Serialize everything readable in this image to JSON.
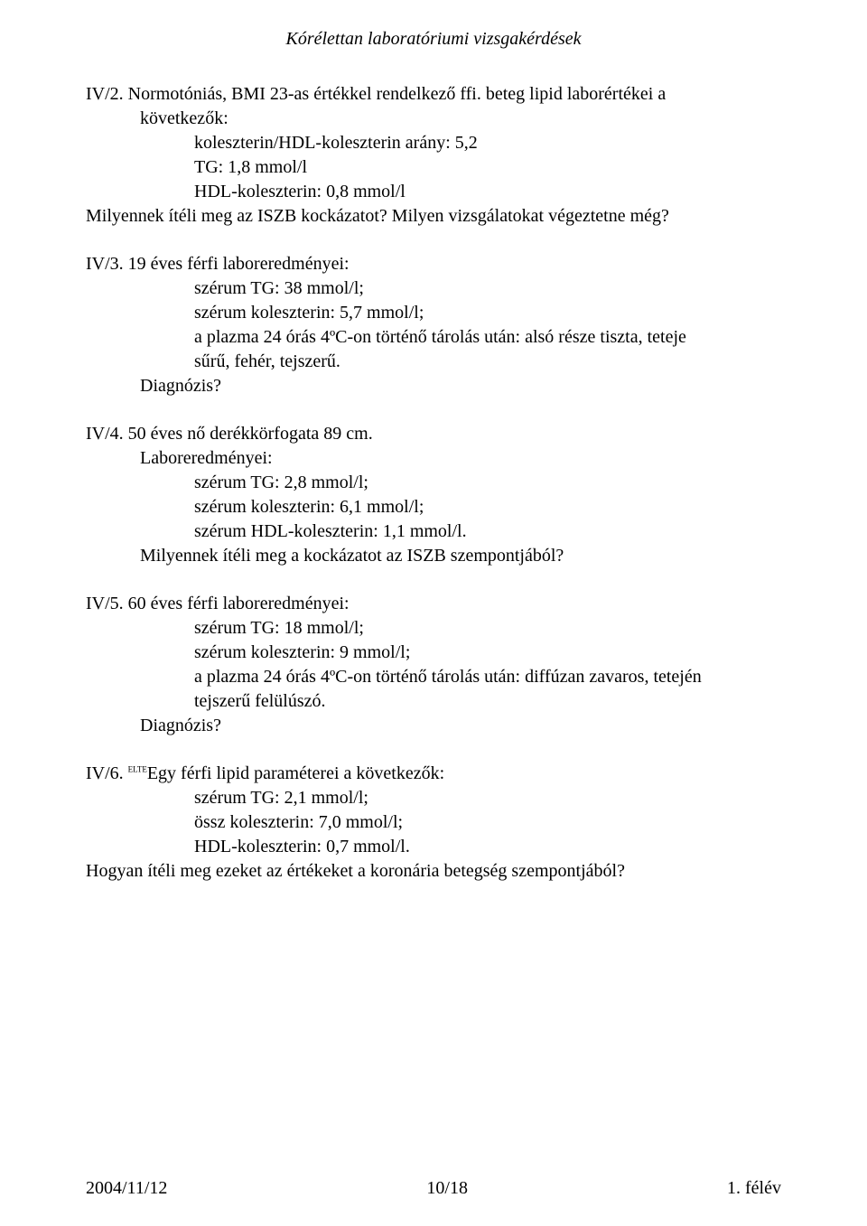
{
  "header": {
    "title": "Kórélettan laboratóriumi vizsgakérdések"
  },
  "questions": [
    {
      "num": "IV/2.",
      "first": "Normotóniás, BMI 23-as értékkel rendelkező ffi. beteg lipid laborértékei a",
      "lines1": [
        "következők:"
      ],
      "lines2": [
        "koleszterin/HDL-koleszterin arány: 5,2",
        "TG: 1,8 mmol/l",
        "HDL-koleszterin: 0,8 mmol/l"
      ],
      "tail0": [
        "Milyennek ítéli meg az ISZB kockázatot? Milyen vizsgálatokat végeztetne még?"
      ]
    },
    {
      "num": "IV/3.",
      "first": "19 éves férfi laboreredményei:",
      "lines2": [
        "szérum TG: 38 mmol/l;",
        "szérum koleszterin: 5,7 mmol/l;",
        "a plazma 24 órás 4ºC-on történő tárolás után: alsó része tiszta, teteje",
        "sűrű, fehér, tejszerű."
      ],
      "lines1_after": [
        "Diagnózis?"
      ]
    },
    {
      "num": "IV/4.",
      "first": "50 éves nő derékkörfogata 89 cm.",
      "lines1": [
        "Laboreredményei:"
      ],
      "lines2": [
        "szérum TG: 2,8 mmol/l;",
        "szérum koleszterin: 6,1 mmol/l;",
        "szérum HDL-koleszterin: 1,1 mmol/l."
      ],
      "lines1_after": [
        "Milyennek ítéli meg a kockázatot az ISZB szempontjából?"
      ]
    },
    {
      "num": "IV/5.",
      "first": "60 éves férfi laboreredményei:",
      "lines2": [
        "szérum TG: 18 mmol/l;",
        "szérum koleszterin: 9 mmol/l;",
        "a plazma 24 órás 4ºC-on történő tárolás után: diffúzan zavaros, tetején",
        "tejszerű felülúszó."
      ],
      "lines1_after": [
        "Diagnózis?"
      ]
    },
    {
      "num": "IV/6.",
      "sup": "ELTE",
      "first": "Egy férfi lipid paraméterei a következők:",
      "lines2": [
        "szérum TG: 2,1 mmol/l;",
        "össz koleszterin: 7,0 mmol/l;",
        "HDL-koleszterin: 0,7 mmol/l."
      ],
      "tail0": [
        "Hogyan ítéli meg ezeket az értékeket a koronária betegség szempontjából?"
      ]
    }
  ],
  "footer": {
    "left": "2004/11/12",
    "center": "10/18",
    "right": "1. félév"
  }
}
